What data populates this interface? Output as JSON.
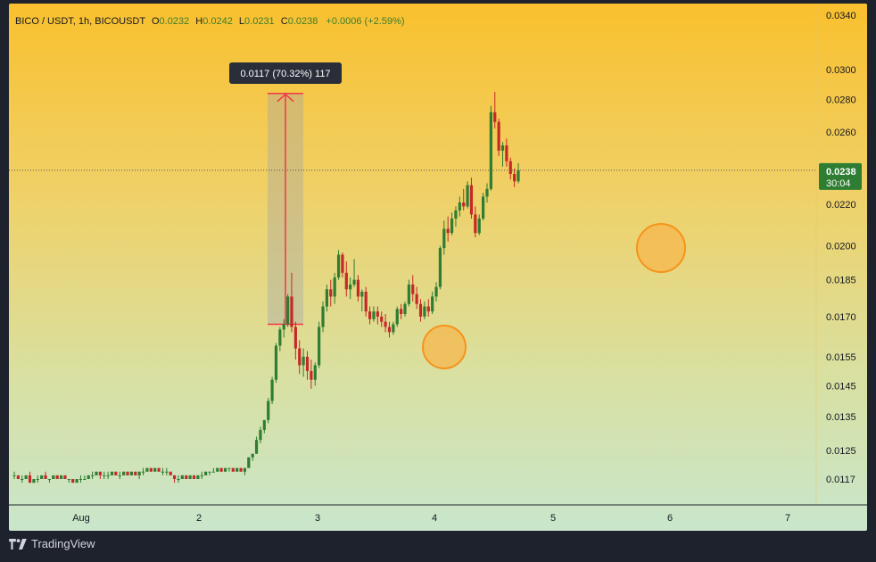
{
  "header": {
    "symbol": "BICO / USDT, 1h, BICOUSDT",
    "open_key": "O",
    "open": "0.0232",
    "high_key": "H",
    "high": "0.0242",
    "low_key": "L",
    "low": "0.0231",
    "close_key": "C",
    "close": "0.0238",
    "change": "+0.0006 (+2.59%)"
  },
  "price_label": {
    "price": "0.0238",
    "countdown": "30:04",
    "color": "#2e7d32"
  },
  "measure_label": "0.0117 (70.32%) 117",
  "branding": {
    "name": "TradingView",
    "icon": "tradingview-logo-icon"
  },
  "colors": {
    "up": "#2e7d32",
    "down": "#c62828",
    "measure": "#f23645",
    "circle_fill": "#f5b74d",
    "circle_stroke": "#f7931a"
  },
  "chart_data": {
    "type": "candlestick",
    "log_scale": true,
    "y_ticks": [
      "0.0340",
      "0.0300",
      "0.0280",
      "0.0260",
      "0.0220",
      "0.0200",
      "0.0185",
      "0.0170",
      "0.0155",
      "0.0145",
      "0.0135",
      "0.0125",
      "0.0117"
    ],
    "x_ticks": [
      "Aug",
      "2",
      "3",
      "4",
      "5",
      "6",
      "7"
    ],
    "ylim": [
      0.0112,
      0.0345
    ],
    "last_price": 0.0238,
    "measure": {
      "from_price": 0.0167,
      "to_price": 0.0284,
      "change": 0.0117,
      "percent": 70.32,
      "bars": 117
    },
    "candles": [
      [
        0.0118,
        0.0119,
        0.0117,
        0.0118
      ],
      [
        0.0118,
        0.0118,
        0.0117,
        0.0117
      ],
      [
        0.0117,
        0.0118,
        0.0116,
        0.0117
      ],
      [
        0.0117,
        0.0118,
        0.0117,
        0.0118
      ],
      [
        0.0118,
        0.0119,
        0.0116,
        0.0116
      ],
      [
        0.0116,
        0.0117,
        0.0116,
        0.0117
      ],
      [
        0.0117,
        0.0118,
        0.0116,
        0.0117
      ],
      [
        0.0117,
        0.0118,
        0.0117,
        0.0118
      ],
      [
        0.0118,
        0.0119,
        0.0117,
        0.0117
      ],
      [
        0.0117,
        0.0117,
        0.0116,
        0.0117
      ],
      [
        0.0117,
        0.0118,
        0.0117,
        0.0118
      ],
      [
        0.0118,
        0.0118,
        0.0117,
        0.0117
      ],
      [
        0.0117,
        0.0118,
        0.0117,
        0.0118
      ],
      [
        0.0118,
        0.0118,
        0.0117,
        0.0117
      ],
      [
        0.0117,
        0.0117,
        0.0116,
        0.0117
      ],
      [
        0.0117,
        0.0117,
        0.0116,
        0.0116
      ],
      [
        0.0116,
        0.0117,
        0.0116,
        0.0117
      ],
      [
        0.0117,
        0.0118,
        0.0116,
        0.0117
      ],
      [
        0.0117,
        0.0118,
        0.0117,
        0.0117
      ],
      [
        0.0117,
        0.0118,
        0.0117,
        0.0118
      ],
      [
        0.0118,
        0.0119,
        0.0117,
        0.0118
      ],
      [
        0.0118,
        0.0119,
        0.0118,
        0.0119
      ],
      [
        0.0119,
        0.0119,
        0.0117,
        0.0118
      ],
      [
        0.0118,
        0.0119,
        0.0117,
        0.0118
      ],
      [
        0.0118,
        0.0119,
        0.0117,
        0.0118
      ],
      [
        0.0118,
        0.0119,
        0.0118,
        0.0119
      ],
      [
        0.0119,
        0.0119,
        0.0118,
        0.0118
      ],
      [
        0.0118,
        0.0119,
        0.0117,
        0.0118
      ],
      [
        0.0118,
        0.0119,
        0.0118,
        0.0119
      ],
      [
        0.0119,
        0.0119,
        0.0118,
        0.0118
      ],
      [
        0.0118,
        0.0119,
        0.0118,
        0.0119
      ],
      [
        0.0119,
        0.0119,
        0.0118,
        0.0118
      ],
      [
        0.0118,
        0.0119,
        0.0117,
        0.0119
      ],
      [
        0.0119,
        0.012,
        0.0118,
        0.0119
      ],
      [
        0.0119,
        0.012,
        0.0119,
        0.012
      ],
      [
        0.012,
        0.012,
        0.0119,
        0.0119
      ],
      [
        0.0119,
        0.012,
        0.0119,
        0.012
      ],
      [
        0.012,
        0.012,
        0.0119,
        0.0119
      ],
      [
        0.0119,
        0.012,
        0.0118,
        0.0119
      ],
      [
        0.0119,
        0.012,
        0.0118,
        0.0119
      ],
      [
        0.0119,
        0.0119,
        0.0118,
        0.0118
      ],
      [
        0.0118,
        0.0118,
        0.0116,
        0.0117
      ],
      [
        0.0117,
        0.0118,
        0.0116,
        0.0117
      ],
      [
        0.0117,
        0.0118,
        0.0117,
        0.0118
      ],
      [
        0.0118,
        0.0118,
        0.0117,
        0.0117
      ],
      [
        0.0117,
        0.0118,
        0.0117,
        0.0118
      ],
      [
        0.0118,
        0.0118,
        0.0117,
        0.0117
      ],
      [
        0.0117,
        0.0118,
        0.0117,
        0.0118
      ],
      [
        0.0118,
        0.0119,
        0.0117,
        0.0118
      ],
      [
        0.0118,
        0.0119,
        0.0118,
        0.0119
      ],
      [
        0.0119,
        0.0119,
        0.0118,
        0.0119
      ],
      [
        0.0119,
        0.012,
        0.0119,
        0.0119
      ],
      [
        0.0119,
        0.012,
        0.0119,
        0.012
      ],
      [
        0.012,
        0.012,
        0.0119,
        0.0119
      ],
      [
        0.0119,
        0.012,
        0.0119,
        0.012
      ],
      [
        0.012,
        0.012,
        0.0119,
        0.012
      ],
      [
        0.012,
        0.012,
        0.0119,
        0.0119
      ],
      [
        0.0119,
        0.012,
        0.0119,
        0.012
      ],
      [
        0.012,
        0.012,
        0.0119,
        0.0119
      ],
      [
        0.0119,
        0.012,
        0.0118,
        0.012
      ],
      [
        0.012,
        0.0123,
        0.012,
        0.0123
      ],
      [
        0.0123,
        0.0124,
        0.0122,
        0.0124
      ],
      [
        0.0124,
        0.0129,
        0.0124,
        0.0128
      ],
      [
        0.0128,
        0.0132,
        0.0127,
        0.0131
      ],
      [
        0.0131,
        0.0134,
        0.013,
        0.0134
      ],
      [
        0.0134,
        0.0141,
        0.0133,
        0.014
      ],
      [
        0.014,
        0.0148,
        0.0139,
        0.0147
      ],
      [
        0.0147,
        0.016,
        0.0146,
        0.0159
      ],
      [
        0.0159,
        0.0166,
        0.0157,
        0.0165
      ],
      [
        0.0165,
        0.0169,
        0.0162,
        0.0167
      ],
      [
        0.0167,
        0.0179,
        0.0166,
        0.0178
      ],
      [
        0.0178,
        0.0188,
        0.0164,
        0.0166
      ],
      [
        0.0166,
        0.0168,
        0.0154,
        0.0158
      ],
      [
        0.0158,
        0.0161,
        0.0149,
        0.0152
      ],
      [
        0.0152,
        0.0158,
        0.0148,
        0.0155
      ],
      [
        0.0155,
        0.0157,
        0.0147,
        0.015
      ],
      [
        0.015,
        0.0154,
        0.0144,
        0.0147
      ],
      [
        0.0147,
        0.0153,
        0.0145,
        0.0152
      ],
      [
        0.0152,
        0.0168,
        0.0151,
        0.0166
      ],
      [
        0.0166,
        0.0176,
        0.0164,
        0.0174
      ],
      [
        0.0174,
        0.0183,
        0.0172,
        0.0181
      ],
      [
        0.0181,
        0.0185,
        0.0174,
        0.0178
      ],
      [
        0.0178,
        0.0188,
        0.0175,
        0.0186
      ],
      [
        0.0186,
        0.0198,
        0.0185,
        0.0196
      ],
      [
        0.0196,
        0.0197,
        0.0186,
        0.0188
      ],
      [
        0.0188,
        0.0193,
        0.0178,
        0.0181
      ],
      [
        0.0181,
        0.0186,
        0.0177,
        0.0183
      ],
      [
        0.0183,
        0.0194,
        0.0182,
        0.0185
      ],
      [
        0.0185,
        0.0187,
        0.0176,
        0.0178
      ],
      [
        0.0178,
        0.0181,
        0.0172,
        0.018
      ],
      [
        0.018,
        0.0182,
        0.017,
        0.0172
      ],
      [
        0.0172,
        0.0174,
        0.0167,
        0.0169
      ],
      [
        0.0169,
        0.0174,
        0.0168,
        0.0172
      ],
      [
        0.0172,
        0.0174,
        0.0167,
        0.017
      ],
      [
        0.017,
        0.0172,
        0.0166,
        0.0168
      ],
      [
        0.0168,
        0.0171,
        0.0164,
        0.0166
      ],
      [
        0.0166,
        0.0168,
        0.0162,
        0.0164
      ],
      [
        0.0164,
        0.0168,
        0.0163,
        0.0167
      ],
      [
        0.0167,
        0.0174,
        0.0166,
        0.0173
      ],
      [
        0.0173,
        0.0175,
        0.0169,
        0.0171
      ],
      [
        0.0171,
        0.0176,
        0.017,
        0.0175
      ],
      [
        0.0175,
        0.0185,
        0.0174,
        0.0183
      ],
      [
        0.0183,
        0.0187,
        0.0176,
        0.0179
      ],
      [
        0.0179,
        0.0182,
        0.0173,
        0.0175
      ],
      [
        0.0175,
        0.0177,
        0.0168,
        0.017
      ],
      [
        0.017,
        0.0176,
        0.0169,
        0.0174
      ],
      [
        0.0174,
        0.0177,
        0.017,
        0.0172
      ],
      [
        0.0172,
        0.018,
        0.0171,
        0.0178
      ],
      [
        0.0178,
        0.0184,
        0.0176,
        0.0182
      ],
      [
        0.0182,
        0.02,
        0.0181,
        0.0199
      ],
      [
        0.0199,
        0.0212,
        0.0196,
        0.0208
      ],
      [
        0.0208,
        0.0214,
        0.0202,
        0.0206
      ],
      [
        0.0206,
        0.0216,
        0.0205,
        0.0213
      ],
      [
        0.0213,
        0.0219,
        0.0209,
        0.0217
      ],
      [
        0.0217,
        0.0224,
        0.0214,
        0.0221
      ],
      [
        0.0221,
        0.0228,
        0.0217,
        0.0219
      ],
      [
        0.0219,
        0.0232,
        0.0218,
        0.023
      ],
      [
        0.023,
        0.0234,
        0.0213,
        0.0215
      ],
      [
        0.0215,
        0.0219,
        0.0204,
        0.0206
      ],
      [
        0.0206,
        0.0215,
        0.0205,
        0.0213
      ],
      [
        0.0213,
        0.0226,
        0.0212,
        0.0224
      ],
      [
        0.0224,
        0.0231,
        0.0221,
        0.0228
      ],
      [
        0.0228,
        0.0276,
        0.0227,
        0.0272
      ],
      [
        0.0272,
        0.0285,
        0.0262,
        0.0266
      ],
      [
        0.0266,
        0.0268,
        0.0246,
        0.0249
      ],
      [
        0.0249,
        0.0254,
        0.024,
        0.0252
      ],
      [
        0.0252,
        0.0256,
        0.024,
        0.0243
      ],
      [
        0.0243,
        0.0245,
        0.0233,
        0.0236
      ],
      [
        0.0236,
        0.0239,
        0.0229,
        0.0232
      ],
      [
        0.0232,
        0.0242,
        0.0231,
        0.0238
      ]
    ]
  }
}
